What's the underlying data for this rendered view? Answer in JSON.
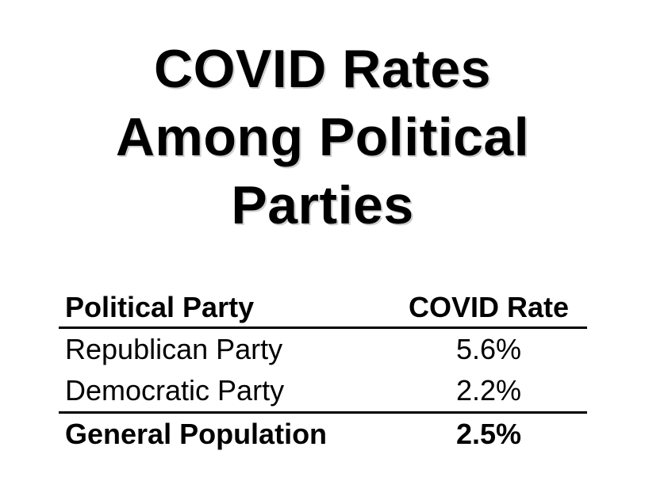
{
  "title_lines": [
    "COVID Rates",
    "Among Political",
    "Parties"
  ],
  "table": {
    "headers": [
      "Political Party",
      "COVID Rate"
    ],
    "rows": [
      {
        "party": "Republican Party",
        "rate": "5.6%"
      },
      {
        "party": "Democratic Party",
        "rate": "2.2%"
      }
    ],
    "total": {
      "party": "General Population",
      "rate": "2.5%"
    }
  }
}
